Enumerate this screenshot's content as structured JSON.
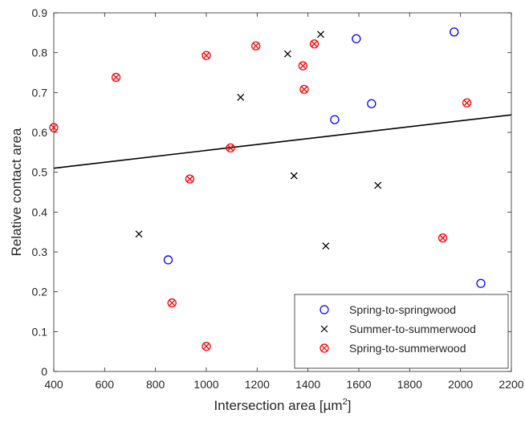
{
  "chart_data": {
    "type": "scatter",
    "xlabel": "Intersection area [µm",
    "xlabel_sup": "2",
    "xlabel_end": "]",
    "ylabel": "Relative contact area",
    "xlim": [
      400,
      2200
    ],
    "ylim": [
      0,
      0.9
    ],
    "xticks": [
      400,
      600,
      800,
      1000,
      1200,
      1400,
      1600,
      1800,
      2000,
      2200
    ],
    "yticks": [
      0,
      0.1,
      0.2,
      0.3,
      0.4,
      0.5,
      0.6,
      0.7,
      0.8,
      0.9
    ],
    "xtick_labels": [
      "400",
      "600",
      "800",
      "1000",
      "1200",
      "1400",
      "1600",
      "1800",
      "2000",
      "2200"
    ],
    "ytick_labels": [
      "0",
      "0.1",
      "0.2",
      "0.3",
      "0.4",
      "0.5",
      "0.6",
      "0.7",
      "0.8",
      "0.9"
    ],
    "grid": false,
    "legend_position": "bottom-right",
    "series": [
      {
        "name": "Spring-to-springwood",
        "marker": "circle",
        "color": "#0000ff",
        "points": [
          [
            850,
            0.28
          ],
          [
            1505,
            0.632
          ],
          [
            1590,
            0.835
          ],
          [
            1650,
            0.672
          ],
          [
            1975,
            0.852
          ],
          [
            2080,
            0.221
          ]
        ]
      },
      {
        "name": "Summer-to-summerwood",
        "marker": "x",
        "color": "#000000",
        "points": [
          [
            735,
            0.345
          ],
          [
            1135,
            0.688
          ],
          [
            1320,
            0.797
          ],
          [
            1345,
            0.491
          ],
          [
            1450,
            0.846
          ],
          [
            1470,
            0.315
          ],
          [
            1675,
            0.467
          ]
        ]
      },
      {
        "name": "Spring-to-summerwood",
        "marker": "circle-x",
        "color": "#ff0000",
        "points": [
          [
            400,
            0.612
          ],
          [
            645,
            0.738
          ],
          [
            865,
            0.172
          ],
          [
            935,
            0.483
          ],
          [
            1000,
            0.793
          ],
          [
            1000,
            0.063
          ],
          [
            1095,
            0.561
          ],
          [
            1195,
            0.817
          ],
          [
            1380,
            0.767
          ],
          [
            1385,
            0.708
          ],
          [
            1425,
            0.822
          ],
          [
            1930,
            0.335
          ],
          [
            2025,
            0.674
          ]
        ]
      }
    ],
    "fit_line": {
      "color": "#000000",
      "points": [
        [
          400,
          0.51
        ],
        [
          2200,
          0.644
        ]
      ]
    }
  }
}
